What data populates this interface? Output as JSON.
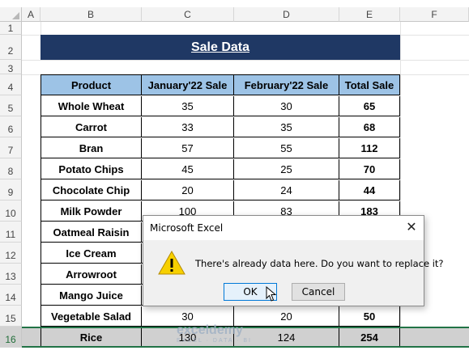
{
  "columns": [
    "A",
    "B",
    "C",
    "D",
    "E",
    "F"
  ],
  "rows": [
    "1",
    "2",
    "3",
    "4",
    "5",
    "6",
    "7",
    "8",
    "9",
    "10",
    "11",
    "12",
    "13",
    "14",
    "15",
    "16"
  ],
  "title": "Sale Data",
  "table": {
    "headers": [
      "Product",
      "January'22 Sale",
      "February'22 Sale",
      "Total Sale"
    ],
    "rows": [
      [
        "Whole Wheat",
        "35",
        "30",
        "65"
      ],
      [
        "Carrot",
        "33",
        "35",
        "68"
      ],
      [
        "Bran",
        "57",
        "55",
        "112"
      ],
      [
        "Potato Chips",
        "45",
        "25",
        "70"
      ],
      [
        "Chocolate Chip",
        "20",
        "24",
        "44"
      ],
      [
        "Milk Powder",
        "100",
        "83",
        "183"
      ],
      [
        "Oatmeal Raisin",
        "",
        "",
        ""
      ],
      [
        "Ice Cream",
        "",
        "",
        ""
      ],
      [
        "Arrowroot",
        "",
        "",
        ""
      ],
      [
        "Mango Juice",
        "",
        "",
        ""
      ],
      [
        "Vegetable Salad",
        "30",
        "20",
        "50"
      ],
      [
        "Rice",
        "130",
        "124",
        "254"
      ]
    ]
  },
  "dialog": {
    "title": "Microsoft Excel",
    "message": "There's already data here. Do you want to replace it?",
    "ok_label": "OK",
    "cancel_label": "Cancel",
    "icon": "warning-icon"
  },
  "watermark": {
    "brand": "exceldemy",
    "tagline": "EXCEL · DATA · BI"
  },
  "colors": {
    "title_bg": "#1f3864",
    "header_bg": "#9dc3e6",
    "selection": "#217346"
  }
}
